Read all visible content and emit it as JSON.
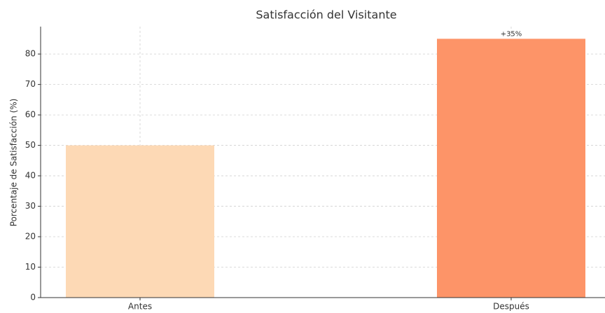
{
  "chart_data": {
    "type": "bar",
    "title": "Satisfacción del Visitante",
    "ylabel": "Porcentaje de Satisfacción (%)",
    "categories": [
      "Antes",
      "Después"
    ],
    "values": [
      50,
      85
    ],
    "colors": [
      "#fdd9b5",
      "#fd9468"
    ],
    "annotation": "+35%",
    "ylim": [
      0,
      89
    ],
    "yticks": [
      0,
      10,
      20,
      30,
      40,
      50,
      60,
      70,
      80
    ],
    "grid": true
  }
}
